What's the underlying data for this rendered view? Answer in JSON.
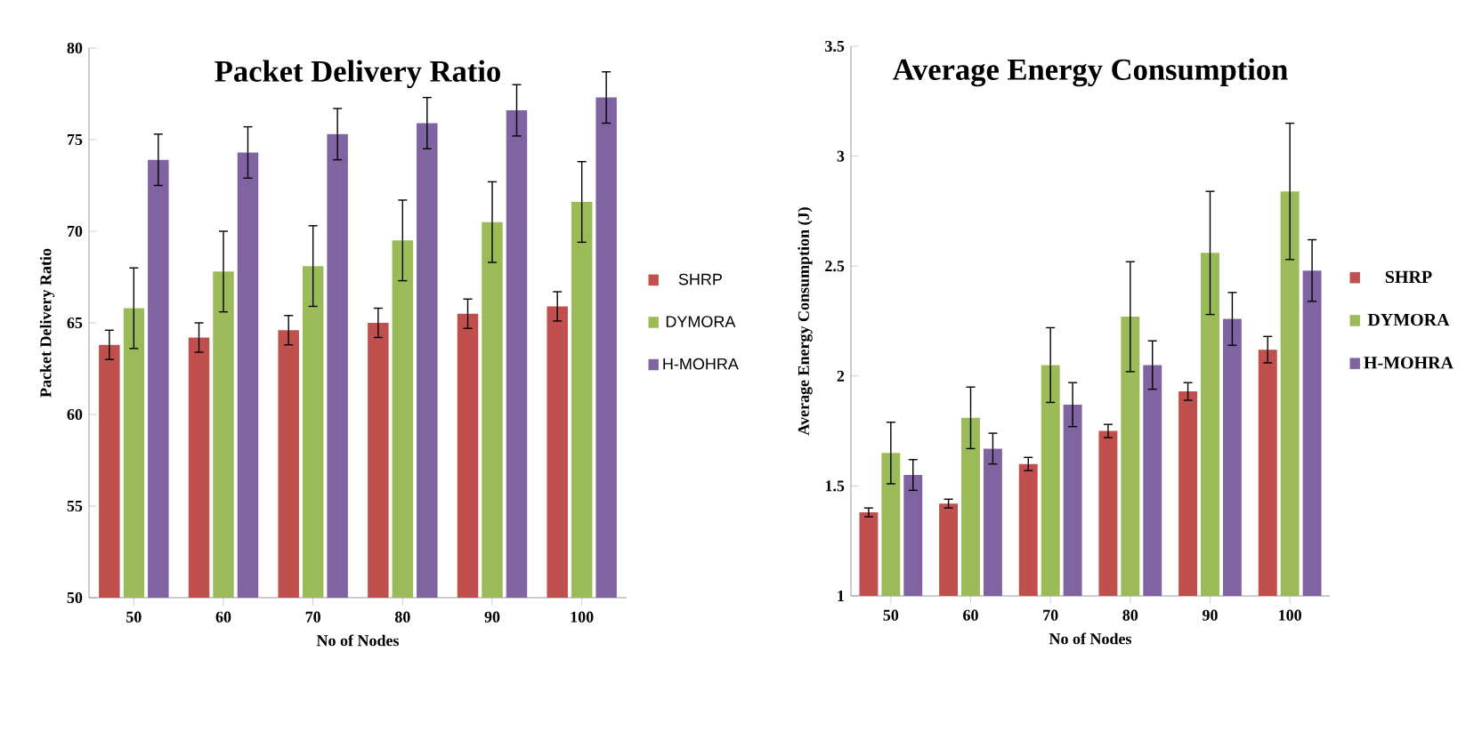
{
  "chart_data": [
    {
      "type": "bar",
      "title": "Packet Delivery Ratio",
      "xlabel": "No of Nodes",
      "ylabel": "Packet Delivery Ratio",
      "categories": [
        "50",
        "60",
        "70",
        "80",
        "90",
        "100"
      ],
      "ylim": [
        50,
        80
      ],
      "yticks": [
        50,
        55,
        60,
        65,
        70,
        75,
        80
      ],
      "legend": "right",
      "series": [
        {
          "name": "SHRP",
          "color": "#c0504d",
          "values": [
            63.8,
            64.2,
            64.6,
            65.0,
            65.5,
            65.9
          ],
          "errors": [
            0.8,
            0.8,
            0.8,
            0.8,
            0.8,
            0.8
          ]
        },
        {
          "name": "DYMORA",
          "color": "#9bbb59",
          "values": [
            65.8,
            67.8,
            68.1,
            69.5,
            70.5,
            71.6
          ],
          "errors": [
            2.2,
            2.2,
            2.2,
            2.2,
            2.2,
            2.2
          ]
        },
        {
          "name": "H-MOHRA",
          "color": "#8064a2",
          "values": [
            73.9,
            74.3,
            75.3,
            75.9,
            76.6,
            77.3
          ],
          "errors": [
            1.4,
            1.4,
            1.4,
            1.4,
            1.4,
            1.4
          ]
        }
      ]
    },
    {
      "type": "bar",
      "title": "Average Energy Consumption",
      "xlabel": "No of Nodes",
      "ylabel": "Average  Energy  Consumption  (J)",
      "categories": [
        "50",
        "60",
        "70",
        "80",
        "90",
        "100"
      ],
      "ylim": [
        1,
        3.5
      ],
      "yticks": [
        1,
        1.5,
        2,
        2.5,
        3,
        3.5
      ],
      "legend": "right",
      "series": [
        {
          "name": "SHRP",
          "color": "#c0504d",
          "values": [
            1.38,
            1.42,
            1.6,
            1.75,
            1.93,
            2.12
          ],
          "errors": [
            0.02,
            0.02,
            0.03,
            0.03,
            0.04,
            0.06
          ]
        },
        {
          "name": "DYMORA",
          "color": "#9bbb59",
          "values": [
            1.65,
            1.81,
            2.05,
            2.27,
            2.56,
            2.84
          ],
          "errors": [
            0.14,
            0.14,
            0.17,
            0.25,
            0.28,
            0.31
          ]
        },
        {
          "name": "H-MOHRA",
          "color": "#8064a2",
          "values": [
            1.55,
            1.67,
            1.87,
            2.05,
            2.26,
            2.48
          ],
          "errors": [
            0.07,
            0.07,
            0.1,
            0.11,
            0.12,
            0.14
          ]
        }
      ]
    }
  ]
}
